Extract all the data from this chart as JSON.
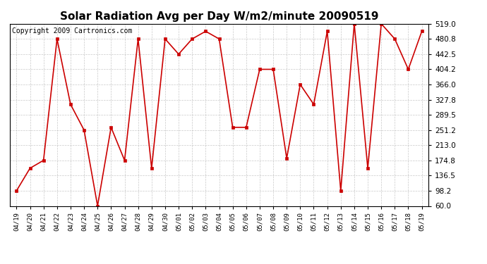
{
  "title": "Solar Radiation Avg per Day W/m2/minute 20090519",
  "copyright": "Copyright 2009 Cartronics.com",
  "labels": [
    "04/19",
    "04/20",
    "04/21",
    "04/22",
    "04/23",
    "04/24",
    "04/25",
    "04/26",
    "04/27",
    "04/28",
    "04/29",
    "04/30",
    "05/01",
    "05/02",
    "05/03",
    "05/04",
    "05/05",
    "05/06",
    "05/07",
    "05/08",
    "05/09",
    "05/10",
    "05/11",
    "05/12",
    "05/13",
    "05/14",
    "05/15",
    "05/16",
    "05/17",
    "05/18",
    "05/19"
  ],
  "values": [
    98.2,
    155.0,
    174.8,
    480.8,
    316.0,
    251.2,
    60.0,
    258.0,
    174.8,
    480.8,
    155.0,
    480.8,
    442.5,
    480.8,
    500.0,
    480.8,
    258.0,
    258.0,
    404.2,
    404.2,
    180.0,
    366.0,
    316.0,
    500.0,
    98.2,
    519.0,
    155.0,
    519.0,
    480.8,
    404.2,
    500.0
  ],
  "ylim": [
    60.0,
    519.0
  ],
  "yticks": [
    60.0,
    98.2,
    136.5,
    174.8,
    213.0,
    251.2,
    289.5,
    327.8,
    366.0,
    404.2,
    442.5,
    480.8,
    519.0
  ],
  "line_color": "#cc0000",
  "marker_color": "#cc0000",
  "bg_color": "#ffffff",
  "plot_bg_color": "#ffffff",
  "grid_color": "#bbbbbb",
  "title_fontsize": 11,
  "copyright_fontsize": 7
}
